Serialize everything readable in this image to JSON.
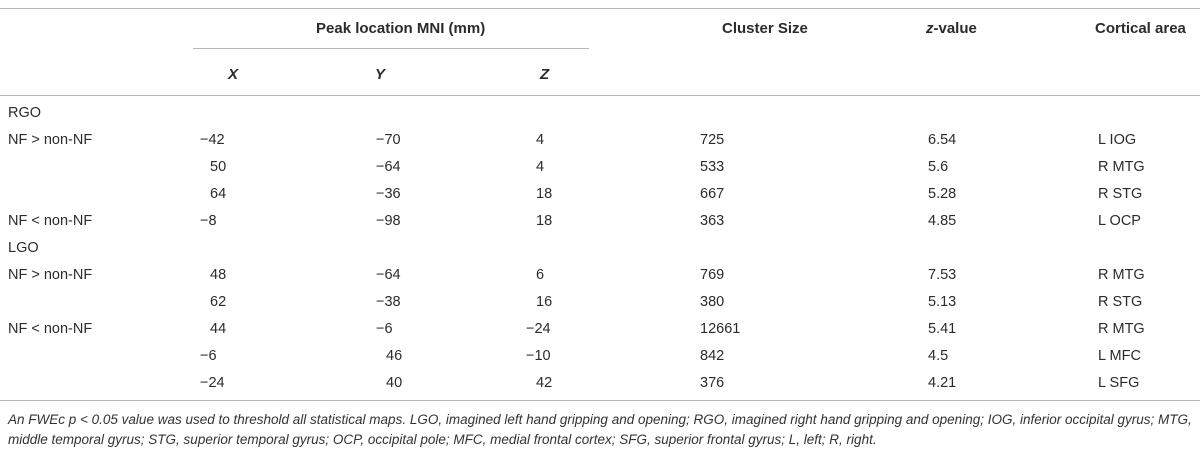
{
  "headers": {
    "peak_location": "Peak location MNI (mm)",
    "cluster_size": "Cluster Size",
    "z_value_italic": "z",
    "z_value_rest": "-value",
    "cortical_area": "Cortical area",
    "x": "X",
    "y": "Y",
    "z": "Z"
  },
  "rows": [
    {
      "label": "RGO",
      "x": "",
      "y": "",
      "z": "",
      "size": "",
      "zval": "",
      "area": ""
    },
    {
      "label": "NF > non-NF",
      "x": "−42",
      "y": "−70",
      "z": "4",
      "size": "725",
      "zval": "6.54",
      "area": "L IOG"
    },
    {
      "label": "",
      "x": "50",
      "y": "−64",
      "z": "4",
      "size": "533",
      "zval": "5.6",
      "area": "R MTG"
    },
    {
      "label": "",
      "x": "64",
      "y": "−36",
      "z": "18",
      "size": "667",
      "zval": "5.28",
      "area": "R STG"
    },
    {
      "label": "NF < non-NF",
      "x": "−8",
      "y": "−98",
      "z": "18",
      "size": "363",
      "zval": "4.85",
      "area": "L OCP"
    },
    {
      "label": "LGO",
      "x": "",
      "y": "",
      "z": "",
      "size": "",
      "zval": "",
      "area": ""
    },
    {
      "label": "NF > non-NF",
      "x": "48",
      "y": "−64",
      "z": "6",
      "size": "769",
      "zval": "7.53",
      "area": "R MTG"
    },
    {
      "label": "",
      "x": "62",
      "y": "−38",
      "z": "16",
      "size": "380",
      "zval": "5.13",
      "area": "R STG"
    },
    {
      "label": "NF < non-NF",
      "x": "44",
      "y": "−6",
      "z": "−24",
      "size": "12661",
      "zval": "5.41",
      "area": "R MTG"
    },
    {
      "label": "",
      "x": "−6",
      "y": "46",
      "z": "−10",
      "size": "842",
      "zval": "4.5",
      "area": "L MFC"
    },
    {
      "label": "",
      "x": "−24",
      "y": "40",
      "z": "42",
      "size": "376",
      "zval": "4.21",
      "area": "L SFG"
    }
  ],
  "footnote": "An FWEc p < 0.05 value was used to threshold all statistical maps. LGO, imagined left hand gripping and opening; RGO, imagined right hand gripping and opening; IOG, inferior occipital gyrus; MTG, middle temporal gyrus; STG, superior temporal gyrus; OCP, occipital pole; MFC, medial frontal cortex; SFG, superior frontal gyrus; L, left; R, right."
}
